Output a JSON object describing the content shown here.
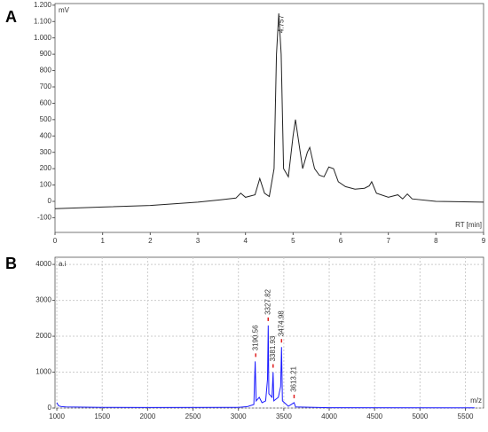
{
  "chart_data": [
    {
      "type": "line",
      "panel_label": "A",
      "y_unit": "mV",
      "x_unit": "RT [min]",
      "peak_label": "4.757",
      "color": "#222222",
      "grid": false,
      "xlim": [
        0,
        9
      ],
      "ylim": [
        -190,
        1210
      ],
      "xticks": [
        0,
        1,
        2,
        3,
        4,
        5,
        6,
        7,
        8,
        9
      ],
      "yticks": [
        -100,
        0,
        100,
        200,
        300,
        400,
        500,
        600,
        700,
        800,
        900,
        {
          "value": 1000,
          "label": "1.000"
        },
        {
          "value": 1100,
          "label": "1.100"
        },
        {
          "value": 1200,
          "label": "1.200"
        }
      ],
      "x": [
        0,
        1,
        2,
        3,
        3.5,
        3.8,
        3.9,
        4.0,
        4.2,
        4.3,
        4.4,
        4.5,
        4.6,
        4.65,
        4.7,
        4.75,
        4.8,
        4.9,
        5.0,
        5.05,
        5.1,
        5.2,
        5.3,
        5.35,
        5.45,
        5.55,
        5.65,
        5.75,
        5.85,
        5.95,
        6.1,
        6.3,
        6.5,
        6.6,
        6.65,
        6.75,
        7.0,
        7.2,
        7.3,
        7.4,
        7.5,
        8,
        9
      ],
      "values": [
        -45,
        -35,
        -25,
        -5,
        10,
        20,
        50,
        25,
        40,
        140,
        50,
        30,
        200,
        900,
        1150,
        900,
        200,
        150,
        400,
        500,
        400,
        200,
        300,
        330,
        200,
        160,
        150,
        210,
        200,
        120,
        90,
        75,
        80,
        95,
        120,
        50,
        25,
        40,
        15,
        45,
        15,
        0,
        -5
      ]
    },
    {
      "type": "spectrum",
      "panel_label": "B",
      "y_unit": "a.i",
      "x_unit": "m/z",
      "color": "#1a1aff",
      "grid": true,
      "xlim": [
        980,
        5700
      ],
      "ylim": [
        0,
        4200
      ],
      "xticks": [
        1000,
        1500,
        2000,
        2500,
        3000,
        3500,
        4000,
        4500,
        5000,
        5500
      ],
      "yticks": [
        0,
        1000,
        2000,
        3000,
        4000
      ],
      "x": [
        1000,
        1020,
        1050,
        1100,
        1500,
        2000,
        3000,
        3100,
        3170,
        3185,
        3195,
        3230,
        3260,
        3300,
        3320,
        3328,
        3335,
        3370,
        3382,
        3390,
        3440,
        3465,
        3475,
        3485,
        3550,
        3613,
        3630,
        4000,
        5600
      ],
      "values": [
        150,
        60,
        40,
        30,
        20,
        15,
        20,
        40,
        100,
        1300,
        200,
        300,
        150,
        200,
        800,
        2300,
        400,
        300,
        1000,
        200,
        300,
        600,
        1700,
        200,
        50,
        150,
        30,
        10,
        5
      ],
      "peak_labels": [
        3190.56,
        3327.82,
        3381.93,
        3474.98,
        3613.21
      ],
      "peak_intensities": [
        1300,
        2300,
        1000,
        1700,
        150
      ]
    }
  ]
}
